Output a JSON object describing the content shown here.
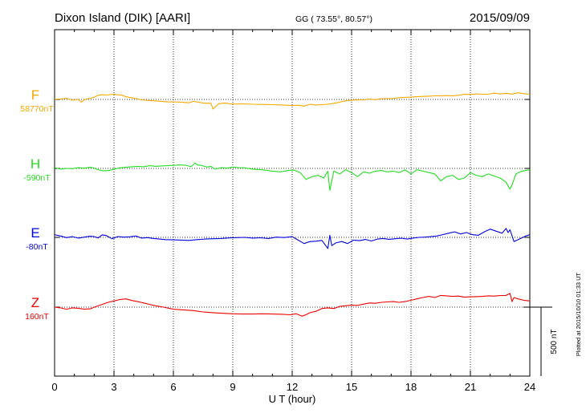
{
  "header": {
    "station": "Dixon Island (DIK)  [AARI]",
    "coords": "GG ( 73.55°,  80.57°)",
    "date": "2015/09/09"
  },
  "side_note": "Plotted at 2015/10/10 01:33 UT",
  "chart_data": {
    "type": "line",
    "xlabel": "U T (hour)",
    "xlim": [
      0,
      24
    ],
    "xticks": [
      0,
      3,
      6,
      9,
      12,
      15,
      18,
      21,
      24
    ],
    "grid": true,
    "scale_bar_label": "500 nT",
    "series": [
      {
        "name": "F",
        "baseline": "58770nT",
        "color": "#f5a800",
        "x": [
          0,
          0.3,
          0.6,
          0.9,
          1.2,
          1.35,
          1.5,
          1.8,
          2.0,
          2.2,
          2.4,
          2.6,
          2.8,
          3.0,
          3.2,
          3.4,
          3.6,
          3.8,
          4.0,
          4.3,
          4.6,
          5.0,
          5.3,
          5.7,
          6.0,
          6.4,
          6.8,
          7.0,
          7.2,
          7.5,
          7.9,
          8.0,
          8.3,
          8.6,
          8.9,
          9.2,
          9.5,
          10,
          10.5,
          11,
          11.5,
          12,
          12.3,
          12.6,
          12.9,
          13.2,
          13.5,
          13.8,
          14.1,
          14.4,
          14.7,
          15.0,
          15.3,
          15.6,
          15.9,
          16.2,
          16.5,
          16.8,
          17.1,
          17.4,
          17.7,
          18.0,
          18.3,
          18.6,
          18.9,
          19.2,
          19.5,
          19.8,
          20.1,
          20.4,
          20.7,
          21.0,
          21.3,
          21.6,
          21.9,
          22.2,
          22.5,
          22.8,
          23.1,
          23.4,
          23.7,
          24
        ],
        "y": [
          2,
          3,
          8,
          -5,
          0,
          -20,
          -2,
          8,
          16,
          30,
          34,
          32,
          35,
          38,
          33,
          31,
          20,
          14,
          10,
          0,
          -6,
          -10,
          -13,
          -18,
          -18,
          -20,
          -24,
          -14,
          -18,
          -26,
          -28,
          -70,
          -30,
          -27,
          -32,
          -34,
          -32,
          -35,
          -36,
          -38,
          -40,
          -44,
          -42,
          -48,
          -35,
          -40,
          -38,
          -35,
          -28,
          -20,
          -10,
          -5,
          -3,
          -4,
          3,
          -2,
          5,
          6,
          7,
          13,
          15,
          17,
          20,
          22,
          24,
          26,
          27,
          28,
          26,
          30,
          37,
          36,
          40,
          38,
          38,
          46,
          40,
          44,
          39,
          48,
          42,
          38
        ]
      },
      {
        "name": "H",
        "baseline": "-590nT",
        "color": "#22dd22",
        "x": [
          0,
          0.3,
          0.6,
          0.9,
          1.2,
          1.5,
          1.8,
          2.0,
          2.2,
          2.5,
          2.8,
          3.0,
          3.3,
          3.6,
          3.9,
          4.2,
          4.5,
          4.8,
          5.1,
          5.4,
          5.7,
          6.0,
          6.3,
          6.6,
          6.9,
          7.1,
          7.2,
          7.4,
          7.7,
          7.9,
          8.1,
          8.4,
          8.7,
          9.0,
          9.3,
          9.6,
          10,
          10.5,
          11,
          11.4,
          11.8,
          12.1,
          12.4,
          12.7,
          13.0,
          13.3,
          13.6,
          13.8,
          13.9,
          14.1,
          14.4,
          14.7,
          15.0,
          15.3,
          15.6,
          15.9,
          16.2,
          16.5,
          16.8,
          17.1,
          17.4,
          17.7,
          18.0,
          18.3,
          18.6,
          18.9,
          19.2,
          19.5,
          19.8,
          20.1,
          20.4,
          20.7,
          21.0,
          21.3,
          21.6,
          21.9,
          22.2,
          22.5,
          22.8,
          23.0,
          23.1,
          23.3,
          23.6,
          24
        ],
        "y": [
          5,
          -5,
          0,
          -2,
          5,
          2,
          8,
          3,
          -10,
          -18,
          -14,
          -5,
          4,
          8,
          12,
          15,
          12,
          20,
          15,
          18,
          20,
          22,
          25,
          24,
          12,
          40,
          25,
          22,
          10,
          15,
          -5,
          5,
          2,
          10,
          6,
          4,
          -5,
          -10,
          -20,
          -25,
          -15,
          -12,
          -30,
          -80,
          -60,
          -50,
          -70,
          -20,
          -160,
          -20,
          -40,
          -10,
          -30,
          -60,
          -25,
          -35,
          -20,
          -15,
          -25,
          -20,
          -30,
          -10,
          -40,
          -10,
          -20,
          -30,
          -40,
          -90,
          -60,
          -50,
          -80,
          -70,
          -30,
          -50,
          -60,
          -40,
          -55,
          -70,
          -100,
          -150,
          -120,
          -40,
          -20,
          -10
        ]
      },
      {
        "name": "E",
        "baseline": "-80nT",
        "color": "#0000dd",
        "x": [
          0,
          0.3,
          0.6,
          0.9,
          1.2,
          1.5,
          1.8,
          2.0,
          2.2,
          2.4,
          2.6,
          2.9,
          3.2,
          3.5,
          3.8,
          4.1,
          4.4,
          4.7,
          5.0,
          5.3,
          5.6,
          6.0,
          6.4,
          6.8,
          7.2,
          7.6,
          8.0,
          8.4,
          8.8,
          9.2,
          9.6,
          10,
          10.4,
          10.8,
          11.2,
          11.6,
          12,
          12.3,
          12.6,
          12.9,
          13.2,
          13.5,
          13.8,
          13.9,
          14.0,
          14.2,
          14.5,
          14.8,
          15.1,
          15.4,
          15.7,
          16.0,
          16.3,
          16.6,
          16.9,
          17.2,
          17.5,
          17.8,
          18.1,
          18.4,
          18.7,
          19.0,
          19.3,
          19.6,
          19.9,
          20.2,
          20.5,
          20.8,
          21.1,
          21.4,
          21.7,
          22.0,
          22.3,
          22.6,
          22.8,
          22.9,
          23.0,
          23.2,
          23.5,
          23.8,
          24
        ],
        "y": [
          20,
          10,
          -2,
          5,
          -5,
          2,
          8,
          6,
          -4,
          18,
          14,
          -10,
          6,
          2,
          4,
          10,
          -5,
          -2,
          -8,
          -12,
          -16,
          -18,
          -20,
          -22,
          -16,
          -12,
          -10,
          -8,
          -4,
          -2,
          0,
          -5,
          -3,
          -8,
          2,
          -1,
          5,
          -20,
          -45,
          -30,
          -28,
          -22,
          -80,
          15,
          -60,
          -40,
          -30,
          -45,
          -20,
          -24,
          -15,
          -26,
          -12,
          -8,
          -14,
          -10,
          -6,
          -12,
          -5,
          0,
          2,
          5,
          10,
          20,
          30,
          40,
          25,
          35,
          20,
          15,
          40,
          60,
          45,
          30,
          65,
          35,
          55,
          -30,
          -10,
          10,
          20
        ]
      },
      {
        "name": "Z",
        "baseline": "160nT",
        "color": "#ee0000",
        "x": [
          0,
          0.3,
          0.6,
          0.9,
          1.2,
          1.5,
          1.8,
          2.1,
          2.4,
          2.7,
          3.0,
          3.3,
          3.6,
          3.9,
          4.2,
          4.5,
          4.8,
          5.1,
          5.5,
          6.0,
          6.5,
          7.0,
          7.5,
          8.0,
          8.5,
          9.0,
          9.5,
          10,
          10.5,
          11,
          11.5,
          11.9,
          12.2,
          12.5,
          12.7,
          12.9,
          13.2,
          13.5,
          13.8,
          14.1,
          14.4,
          14.7,
          15.0,
          15.3,
          15.6,
          15.9,
          16.2,
          16.5,
          16.8,
          17.1,
          17.4,
          17.7,
          18.0,
          18.3,
          18.6,
          18.9,
          19.2,
          19.5,
          19.8,
          20.1,
          20.4,
          20.7,
          21.0,
          21.3,
          21.6,
          21.9,
          22.2,
          22.5,
          22.8,
          23.0,
          23.1,
          23.2,
          23.4,
          23.7,
          24
        ],
        "y": [
          0,
          -5,
          -15,
          -5,
          -8,
          -15,
          -12,
          5,
          20,
          35,
          45,
          55,
          60,
          48,
          40,
          30,
          20,
          10,
          0,
          -15,
          -20,
          -25,
          -35,
          -40,
          -45,
          -48,
          -50,
          -50,
          -48,
          -50,
          -52,
          -55,
          -48,
          -65,
          -55,
          -40,
          -30,
          -10,
          -5,
          -10,
          5,
          10,
          15,
          12,
          22,
          30,
          28,
          35,
          38,
          40,
          35,
          40,
          50,
          60,
          70,
          78,
          70,
          85,
          82,
          78,
          80,
          72,
          75,
          76,
          78,
          82,
          80,
          84,
          85,
          100,
          40,
          70,
          60,
          50,
          45
        ]
      }
    ]
  }
}
